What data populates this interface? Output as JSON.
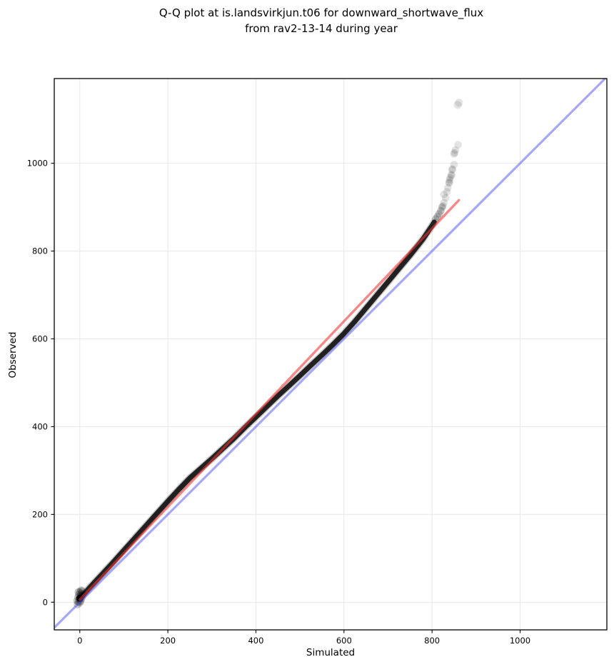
{
  "figure": {
    "title_line1": "Q-Q plot at is.landsvirkjun.t06 for downward_shortwave_flux",
    "title_line2": "from rav2-13-14 during year"
  },
  "chart_data": {
    "type": "scatter",
    "title": "Q-Q plot at is.landsvirkjun.t06 for downward_shortwave_flux from rav2-13-14 during year",
    "xlabel": "Simulated",
    "ylabel": "Observed",
    "xlim": [
      -58,
      1197
    ],
    "ylim": [
      -63,
      1193
    ],
    "xticks": [
      0,
      200,
      400,
      600,
      800,
      1000
    ],
    "yticks": [
      0,
      200,
      400,
      600,
      800,
      1000
    ],
    "grid": true,
    "legend": false,
    "grid_color": "#e9e9e9",
    "frame_color": "#000000",
    "series": [
      {
        "name": "quantile-points",
        "type": "scatter",
        "color": "#000000",
        "alpha": 0.11,
        "band": [
          [
            0,
            8
          ],
          [
            25,
            36
          ],
          [
            50,
            63
          ],
          [
            75,
            90
          ],
          [
            100,
            118
          ],
          [
            125,
            146
          ],
          [
            150,
            174
          ],
          [
            175,
            202
          ],
          [
            200,
            230
          ],
          [
            225,
            257
          ],
          [
            250,
            283
          ],
          [
            275,
            305
          ],
          [
            300,
            327
          ],
          [
            325,
            350
          ],
          [
            350,
            373
          ],
          [
            375,
            398
          ],
          [
            400,
            422
          ],
          [
            425,
            446
          ],
          [
            450,
            470
          ],
          [
            475,
            493
          ],
          [
            500,
            516
          ],
          [
            525,
            540
          ],
          [
            550,
            563
          ],
          [
            575,
            587
          ],
          [
            600,
            612
          ],
          [
            625,
            640
          ],
          [
            650,
            670
          ],
          [
            675,
            700
          ],
          [
            700,
            730
          ],
          [
            725,
            760
          ],
          [
            750,
            790
          ],
          [
            765,
            809
          ],
          [
            780,
            828
          ],
          [
            790,
            843
          ],
          [
            800,
            858
          ],
          [
            805,
            866
          ]
        ],
        "origin_cluster": [
          [
            -5,
            -5
          ],
          [
            -3,
            1
          ],
          [
            -1,
            7
          ],
          [
            1,
            13
          ],
          [
            3,
            19
          ],
          [
            5,
            25
          ],
          [
            -4,
            11
          ],
          [
            -2,
            17
          ],
          [
            0,
            23
          ],
          [
            2,
            3
          ],
          [
            4,
            9
          ],
          [
            -6,
            3
          ],
          [
            6,
            17
          ],
          [
            0,
            -1
          ],
          [
            3,
            27
          ],
          [
            -3,
            23
          ]
        ],
        "tail": [
          [
            808,
            872
          ],
          [
            808,
            873
          ],
          [
            812,
            878
          ],
          [
            812,
            879
          ],
          [
            816,
            884
          ],
          [
            816,
            885
          ],
          [
            820,
            891
          ],
          [
            820,
            892
          ],
          [
            823,
            899
          ],
          [
            823,
            901
          ],
          [
            825,
            903
          ],
          [
            827,
            910
          ],
          [
            831,
            921
          ],
          [
            827,
            929
          ],
          [
            834,
            935
          ],
          [
            836,
            944
          ],
          [
            839,
            955
          ],
          [
            839,
            957
          ],
          [
            840,
            962
          ],
          [
            841,
            967
          ],
          [
            844,
            972
          ],
          [
            844,
            974
          ],
          [
            846,
            985
          ],
          [
            846,
            987
          ],
          [
            850,
            997
          ],
          [
            850,
            1021
          ],
          [
            851,
            1024
          ],
          [
            853,
            1030
          ],
          [
            859,
            1042
          ]
        ],
        "outliers": [
          [
            858,
            1133
          ],
          [
            861,
            1138
          ]
        ]
      },
      {
        "name": "identity-line",
        "type": "line",
        "color": "rgba(80,80,240,0.50)",
        "points": [
          [
            -60,
            -60
          ],
          [
            1200,
            1200
          ]
        ]
      },
      {
        "name": "fit-line",
        "type": "line",
        "color": "rgba(240,50,50,0.58)",
        "points": [
          [
            0,
            6
          ],
          [
            861,
            916
          ]
        ]
      }
    ]
  }
}
